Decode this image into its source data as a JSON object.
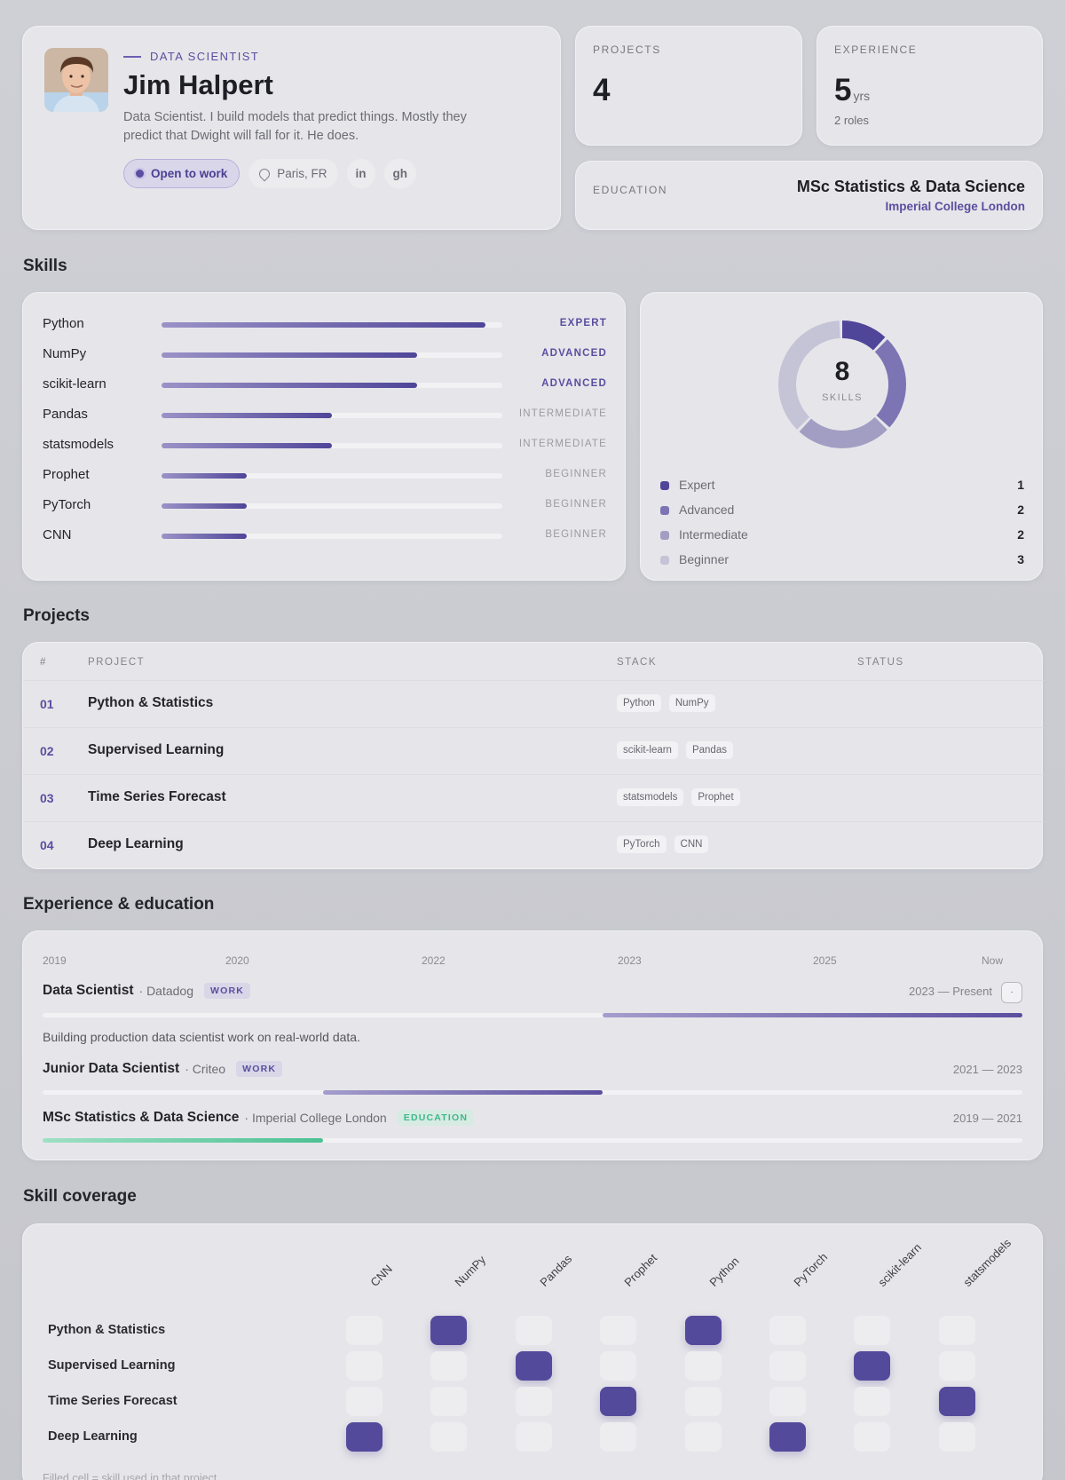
{
  "profile": {
    "role": "DATA SCIENTIST",
    "name": "Jim Halpert",
    "bio": "Data Scientist. I build models that predict things. Mostly they predict that Dwight will fall for it. He does.",
    "status": "Open to work",
    "location": "Paris, FR",
    "links": [
      "in",
      "gh"
    ]
  },
  "stats": {
    "projects": {
      "label": "PROJECTS",
      "value": "4"
    },
    "experience": {
      "label": "EXPERIENCE",
      "value": "5",
      "unit": "yrs",
      "sub": "2 roles"
    },
    "education": {
      "label": "EDUCATION",
      "degree": "MSc Statistics & Data Science",
      "school": "Imperial College London"
    }
  },
  "skills": {
    "title": "Skills",
    "items": [
      {
        "name": "Python",
        "level": "EXPERT",
        "fill": 0.95
      },
      {
        "name": "NumPy",
        "level": "ADVANCED",
        "fill": 0.75
      },
      {
        "name": "scikit-learn",
        "level": "ADVANCED",
        "fill": 0.75
      },
      {
        "name": "Pandas",
        "level": "INTERMEDIATE",
        "fill": 0.5
      },
      {
        "name": "statsmodels",
        "level": "INTERMEDIATE",
        "fill": 0.5
      },
      {
        "name": "Prophet",
        "level": "BEGINNER",
        "fill": 0.25
      },
      {
        "name": "PyTorch",
        "level": "BEGINNER",
        "fill": 0.25
      },
      {
        "name": "CNN",
        "level": "BEGINNER",
        "fill": 0.25
      }
    ],
    "total": "8",
    "total_label": "SKILLS",
    "legend": [
      {
        "name": "Expert",
        "count": "1",
        "color": "#4f4599"
      },
      {
        "name": "Advanced",
        "count": "2",
        "color": "#7d74b4"
      },
      {
        "name": "Intermediate",
        "count": "2",
        "color": "#a29ec3"
      },
      {
        "name": "Beginner",
        "count": "3",
        "color": "#c5c3d6"
      }
    ]
  },
  "projects": {
    "title": "Projects",
    "headers": [
      "#",
      "PROJECT",
      "STACK",
      "STATUS"
    ],
    "rows": [
      {
        "num": "01",
        "name": "Python & Statistics",
        "stack": [
          "Python",
          "NumPy"
        ]
      },
      {
        "num": "02",
        "name": "Supervised Learning",
        "stack": [
          "scikit-learn",
          "Pandas"
        ]
      },
      {
        "num": "03",
        "name": "Time Series Forecast",
        "stack": [
          "statsmodels",
          "Prophet"
        ]
      },
      {
        "num": "04",
        "name": "Deep Learning",
        "stack": [
          "PyTorch",
          "CNN"
        ]
      }
    ]
  },
  "experience": {
    "title": "Experience & education",
    "years": [
      "2019",
      "2020",
      "2022",
      "2023",
      "2025",
      "Now"
    ],
    "items": [
      {
        "title": "Data Scientist",
        "org": "· Datadog",
        "type": "WORK",
        "range": "2023 — Present",
        "start": 0.572,
        "end": 1.0,
        "desc": "Building production data scientist work on real-world data.",
        "toggle": "·"
      },
      {
        "title": "Junior Data Scientist",
        "org": "· Criteo",
        "type": "WORK",
        "range": "2021 — 2023",
        "start": 0.286,
        "end": 0.572
      },
      {
        "title": "MSc Statistics & Data Science",
        "org": "· Imperial College London",
        "type": "EDUCATION",
        "range": "2019 — 2021",
        "start": 0.0,
        "end": 0.286
      }
    ]
  },
  "coverage": {
    "title": "Skill coverage",
    "columns": [
      "CNN",
      "NumPy",
      "Pandas",
      "Prophet",
      "Python",
      "PyTorch",
      "scikit-learn",
      "statsmodels"
    ],
    "rows": [
      {
        "name": "Python & Statistics",
        "cells": [
          0,
          1,
          0,
          0,
          1,
          0,
          0,
          0
        ]
      },
      {
        "name": "Supervised Learning",
        "cells": [
          0,
          0,
          1,
          0,
          0,
          0,
          1,
          0
        ]
      },
      {
        "name": "Time Series Forecast",
        "cells": [
          0,
          0,
          0,
          1,
          0,
          0,
          0,
          1
        ]
      },
      {
        "name": "Deep Learning",
        "cells": [
          1,
          0,
          0,
          0,
          0,
          1,
          0,
          0
        ]
      }
    ],
    "note": "Filled cell = skill used in that project"
  }
}
